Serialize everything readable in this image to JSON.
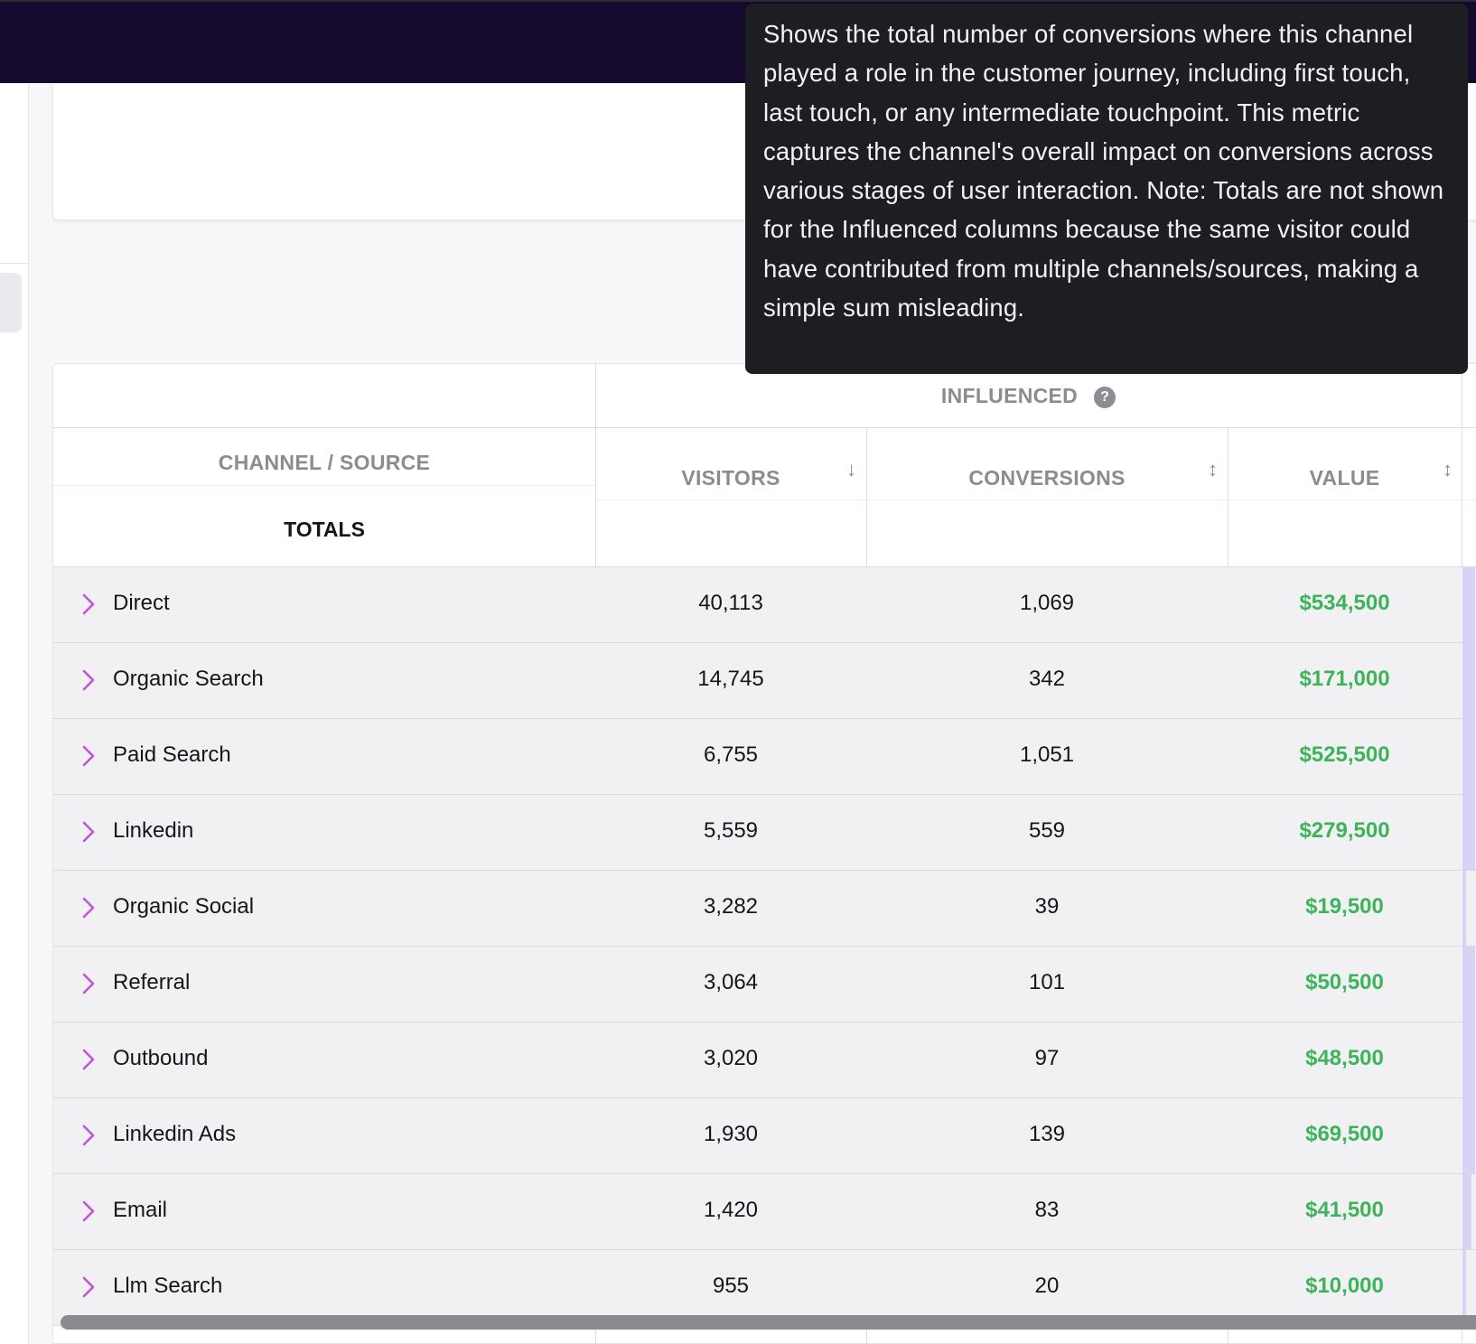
{
  "tooltip": {
    "text": "Shows the total number of conversions where this channel played a role in the customer journey, including first touch, last touch, or any intermediate touchpoint. This metric captures the channel's overall impact on conversions across various stages of user interaction. Note: Totals are not shown for the Influenced columns because the same visitor could have contributed from multiple channels/sources, making a simple sum misleading."
  },
  "table": {
    "group_header": "INFLUENCED",
    "help_icon": "question-circle-icon",
    "columns": {
      "channel": "CHANNEL / SOURCE",
      "visitors": "VISITORS",
      "conversions": "CONVERSIONS",
      "value": "VALUE"
    },
    "sort": {
      "visitors": "arrow-down-icon",
      "conversions": "sort-updown-icon",
      "value": "sort-updown-icon"
    },
    "totals_label": "TOTALS",
    "value_color": "#3db35a",
    "accent_color": "#c054d8",
    "rows": [
      {
        "name": "Direct",
        "visitors": "40,113",
        "conversions": "1,069",
        "value": "$534,500"
      },
      {
        "name": "Organic Search",
        "visitors": "14,745",
        "conversions": "342",
        "value": "$171,000"
      },
      {
        "name": "Paid Search",
        "visitors": "6,755",
        "conversions": "1,051",
        "value": "$525,500"
      },
      {
        "name": "Linkedin",
        "visitors": "5,559",
        "conversions": "559",
        "value": "$279,500"
      },
      {
        "name": "Organic Social",
        "visitors": "3,282",
        "conversions": "39",
        "value": "$19,500"
      },
      {
        "name": "Referral",
        "visitors": "3,064",
        "conversions": "101",
        "value": "$50,500"
      },
      {
        "name": "Outbound",
        "visitors": "3,020",
        "conversions": "97",
        "value": "$48,500"
      },
      {
        "name": "Linkedin Ads",
        "visitors": "1,930",
        "conversions": "139",
        "value": "$69,500"
      },
      {
        "name": "Email",
        "visitors": "1,420",
        "conversions": "83",
        "value": "$41,500"
      },
      {
        "name": "Llm Search",
        "visitors": "955",
        "conversions": "20",
        "value": "$10,000"
      }
    ]
  }
}
